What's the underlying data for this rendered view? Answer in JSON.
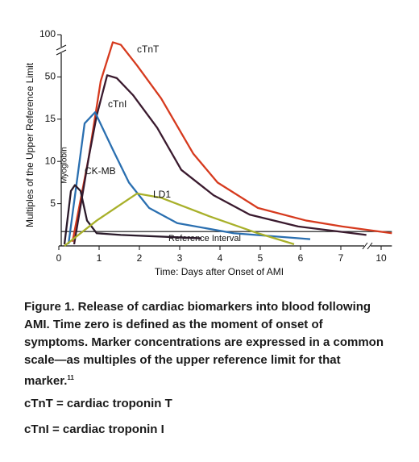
{
  "chart_data": {
    "type": "line",
    "y_label": "Multiples of the Upper Reference Limit",
    "x_label": "Time: Days after Onset of AMI",
    "xlim": [
      0,
      10.8
    ],
    "xticks": [
      0,
      1,
      2,
      3,
      4,
      5,
      6,
      7,
      10
    ],
    "ylim": [
      0,
      100
    ],
    "yticks": [
      5,
      10,
      15,
      50,
      100
    ],
    "reference_line": {
      "label": "Reference Interval",
      "value": 1.7
    },
    "series": [
      {
        "name": "cTnT",
        "color": "#d63a1e",
        "x": [
          0.34,
          0.74,
          1.04,
          1.34,
          1.54,
          1.94,
          2.54,
          3.34,
          3.94,
          4.94,
          6.14,
          7.1,
          10.8
        ],
        "values": [
          0.5,
          10.4,
          46.6,
          91,
          88,
          63.7,
          32.2,
          10.9,
          7.5,
          4.5,
          3,
          2.3,
          1.5
        ]
      },
      {
        "name": "cTnI",
        "color": "#3a1a2e",
        "x": [
          0.38,
          0.74,
          0.94,
          1.2,
          1.44,
          1.84,
          2.44,
          3.04,
          3.84,
          4.74,
          5.94,
          8.9
        ],
        "values": [
          0.2,
          10.4,
          17.9,
          52,
          49,
          35,
          14,
          9,
          6,
          3.7,
          2.3,
          1.3
        ]
      },
      {
        "name": "CK-MB",
        "color": "#2a6fb0",
        "x": [
          0.24,
          0.64,
          0.9,
          1.34,
          1.74,
          2.24,
          2.94,
          4.34,
          6.24
        ],
        "values": [
          0.2,
          14.5,
          20.7,
          11.4,
          7.5,
          4.5,
          2.7,
          1.5,
          0.8
        ]
      },
      {
        "name": "Myoglobin",
        "color": "#2a1a2a",
        "x": [
          0.14,
          0.3,
          0.4,
          0.54,
          0.7,
          0.94,
          1.54,
          3.54
        ],
        "values": [
          0.2,
          6.5,
          7.2,
          6.5,
          3,
          1.5,
          1.3,
          0.9
        ]
      },
      {
        "name": "LD1",
        "color": "#a8b02a",
        "x": [
          0.14,
          0.94,
          1.94,
          2.54,
          3.74,
          4.94,
          5.84
        ],
        "values": [
          0,
          3,
          6.2,
          5.7,
          3.5,
          1.5,
          0.2
        ]
      }
    ]
  },
  "caption": {
    "text": "Figure 1. Release of cardiac biomarkers into blood following AMI. Time zero is defined as the moment of onset of symptoms. Marker concentrations are expressed in a common scale—as multiples of the upper reference limit for that marker.",
    "reference": "11"
  },
  "definitions": [
    "cTnT = cardiac troponin T",
    "cTnI = cardiac troponin I"
  ]
}
